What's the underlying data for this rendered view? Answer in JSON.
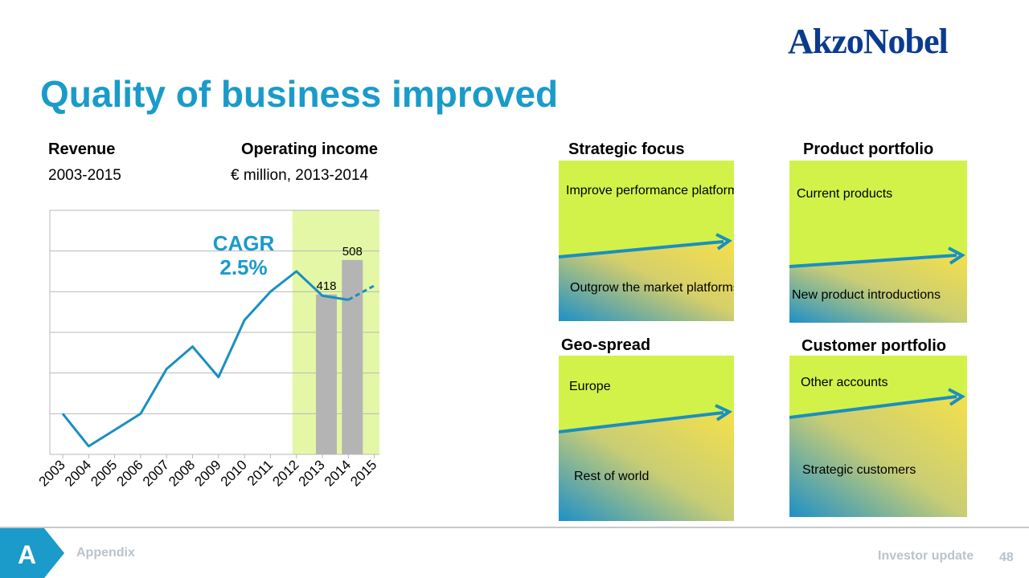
{
  "brand": {
    "logo_text": "AkzoNobel"
  },
  "title": "Quality of business improved",
  "revenue": {
    "header": "Revenue",
    "subheader": "2003-2015"
  },
  "opincome": {
    "header": "Operating income",
    "subheader": "€ million, 2013-2014"
  },
  "cagr_label": "CAGR 2.5%",
  "chart_data": {
    "type": "line",
    "categories": [
      "2003",
      "2004",
      "2005",
      "2006",
      "2007",
      "2008",
      "2009",
      "2010",
      "2011",
      "2012",
      "2013",
      "2014",
      "2015"
    ],
    "series": [
      {
        "values": [
          1.0,
          0.2,
          0.6,
          1.0,
          2.1,
          2.65,
          1.9,
          3.3,
          4.0,
          4.5,
          3.9,
          3.8,
          4.15
        ],
        "style": "solid",
        "note_last_segment_dashed": true
      }
    ],
    "bars": [
      {
        "category": "2013",
        "value": 418,
        "label": "418"
      },
      {
        "category": "2014",
        "value": 508,
        "label": "508"
      }
    ],
    "highlight_range": [
      "2012",
      "2015"
    ],
    "grid": true,
    "colors": {
      "line": "#1a8fc0",
      "bars": "#b4b4b4",
      "highlight": "#e4f7a6"
    }
  },
  "panels": {
    "strategic": {
      "header": "Strategic focus",
      "top_label": "Improve performance platforms",
      "bottom_label": "Outgrow the market platforms"
    },
    "product": {
      "header": "Product portfolio",
      "top_label": "Current products",
      "bottom_label": "New product introductions"
    },
    "geo": {
      "header": "Geo-spread",
      "top_label": "Europe",
      "bottom_label": "Rest of world"
    },
    "customer": {
      "header": "Customer portfolio",
      "top_label": "Other accounts",
      "bottom_label": "Strategic customers"
    }
  },
  "footer": {
    "badge": "A",
    "section": "Appendix",
    "doc": "Investor update",
    "page": "48"
  },
  "colors": {
    "title": "#1a9bc9",
    "logo": "#0a3b8f",
    "panel_green": "#d2f24a",
    "panel_blue": "#1e90c8",
    "arrow": "#1a8fc0"
  }
}
